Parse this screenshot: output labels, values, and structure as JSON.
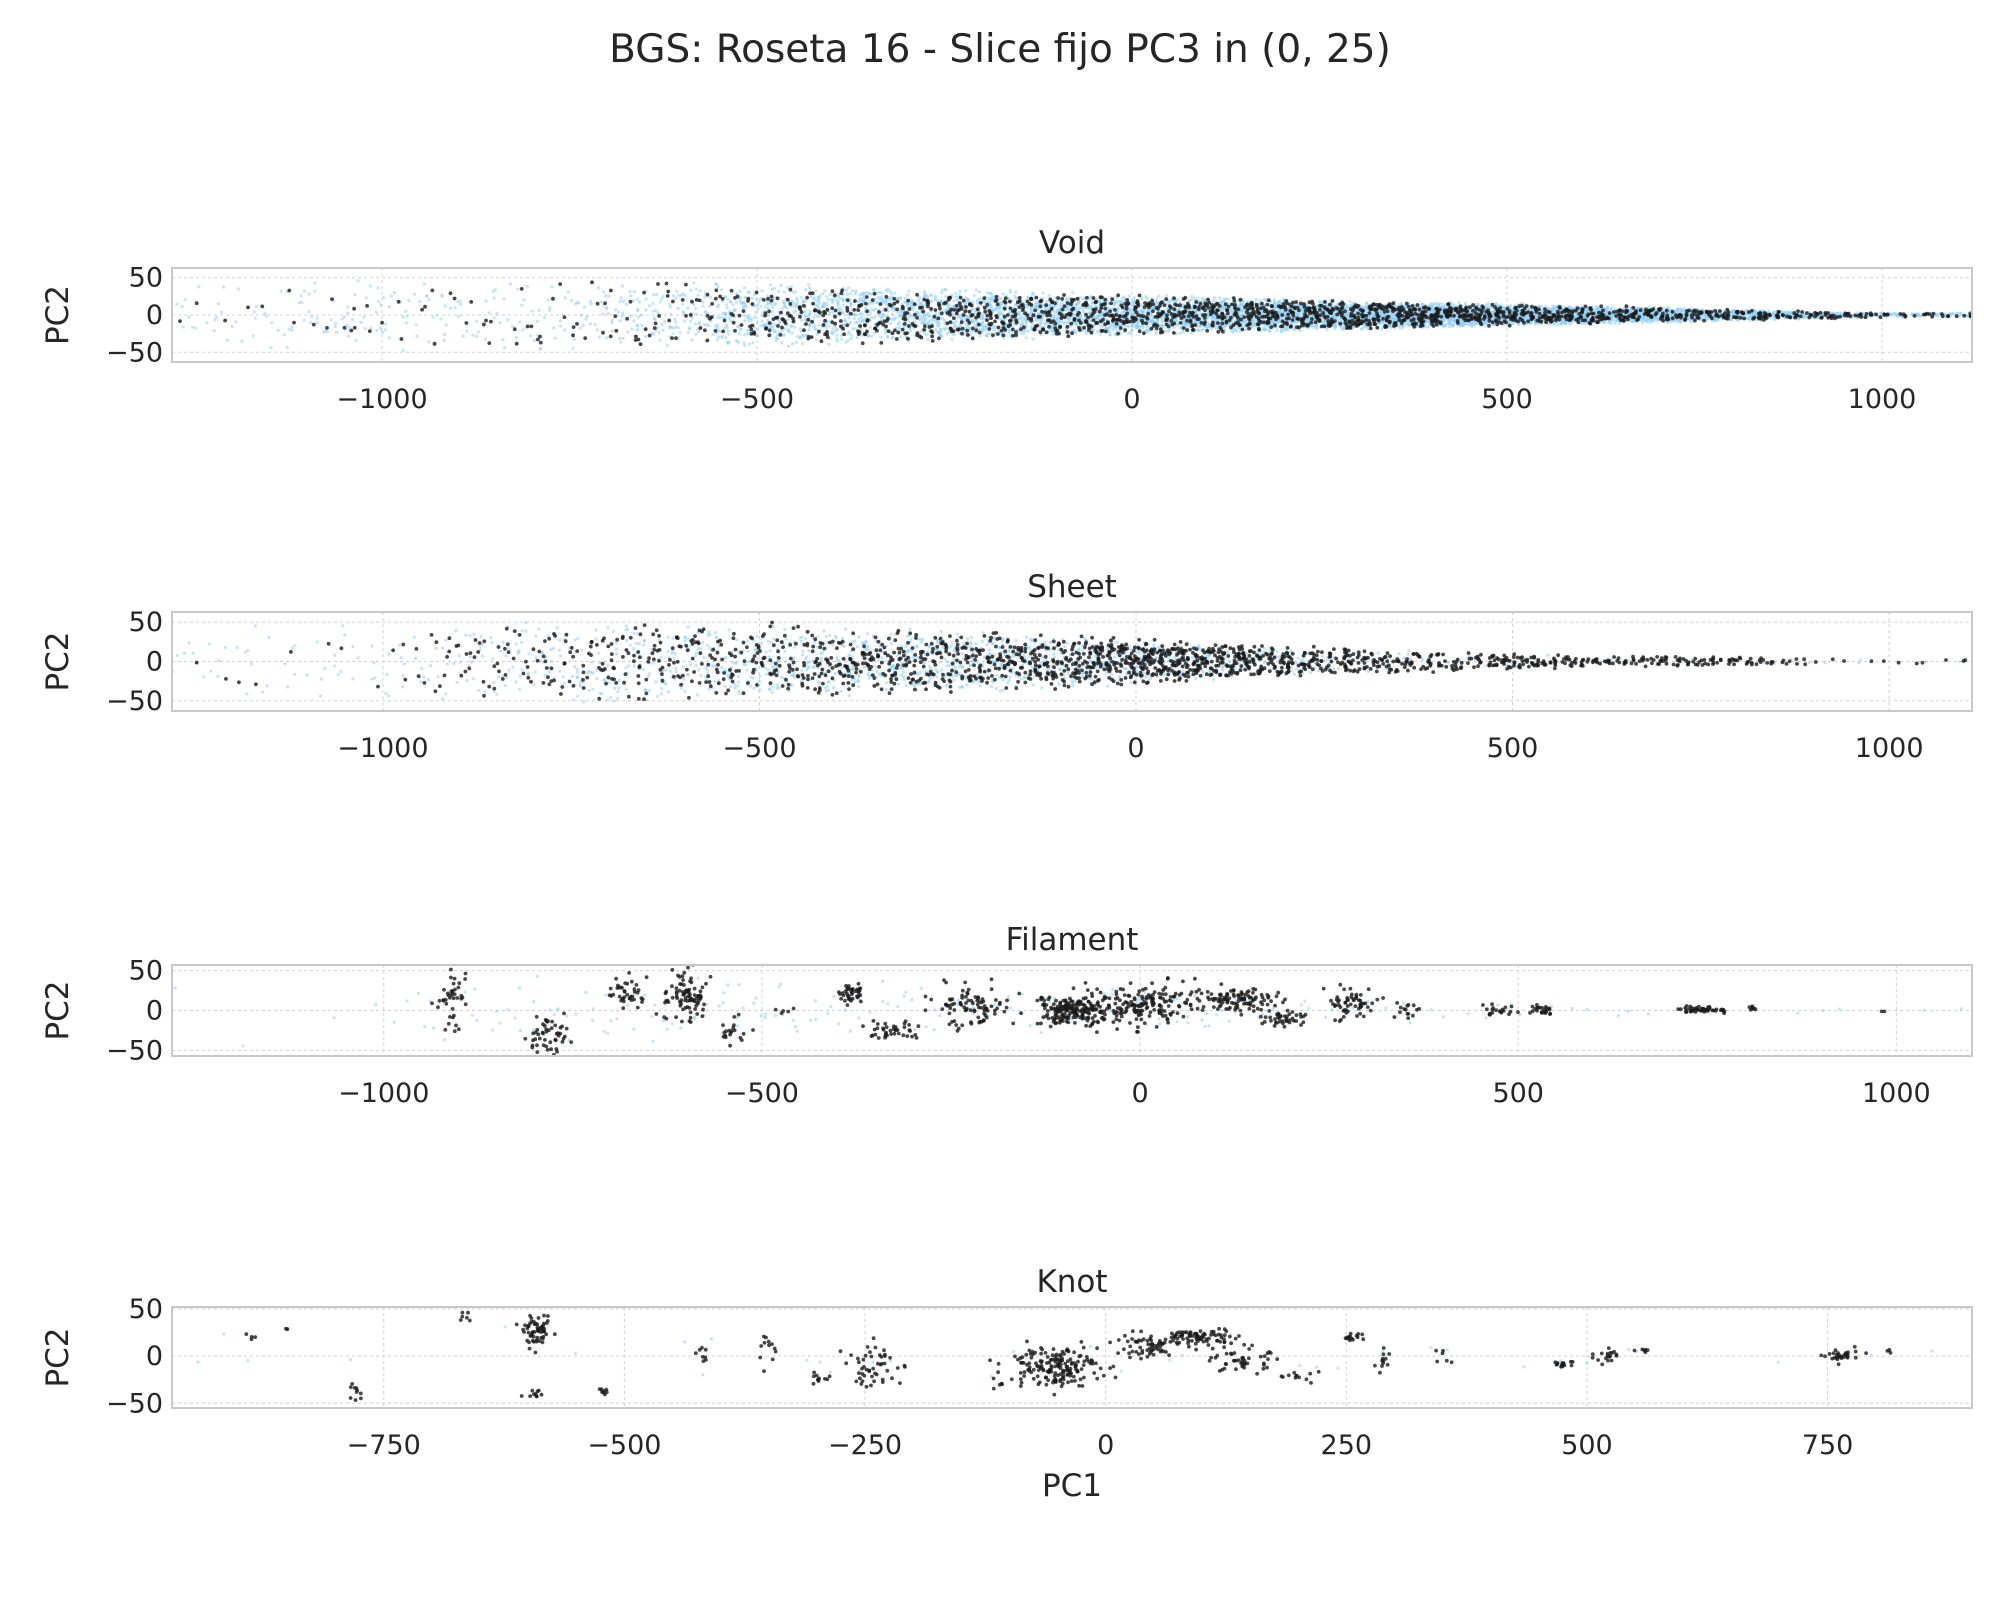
{
  "figure": {
    "suptitle": "BGS: Roseta 16 - Slice fijo PC3 in (0, 25)"
  },
  "colors": {
    "background_points": "#8fcff5",
    "highlight_points": "#1a1a1a",
    "frame": "#c8c8c8",
    "grid": "#d0d0d0",
    "text": "#262626"
  },
  "chart_data": [
    {
      "type": "scatter",
      "title": "Void",
      "xlabel": "",
      "ylabel": "PC2",
      "xlim": [
        -1280,
        1120
      ],
      "ylim": [
        -63,
        63
      ],
      "xticks": [
        -1000,
        -500,
        0,
        500,
        1000
      ],
      "xtick_labels": [
        "−1000",
        "−500",
        "0",
        "500",
        "1000"
      ],
      "yticks": [
        -50,
        0,
        50
      ],
      "ytick_labels": [
        "−50",
        "0",
        "50"
      ],
      "grid": true,
      "series": [
        {
          "role": "background",
          "color": "#8fcff5",
          "density": [
            [
              -1170,
              20
            ],
            [
              -1100,
              40
            ],
            [
              -1000,
              40
            ],
            [
              -900,
              30
            ],
            [
              -800,
              40
            ],
            [
              -700,
              60
            ],
            [
              -600,
              120
            ],
            [
              -500,
              220
            ],
            [
              -400,
              260
            ],
            [
              -300,
              300
            ],
            [
              -200,
              380
            ],
            [
              -100,
              420
            ],
            [
              0,
              460
            ],
            [
              100,
              520
            ],
            [
              200,
              580
            ],
            [
              300,
              640
            ],
            [
              400,
              660
            ],
            [
              500,
              620
            ],
            [
              600,
              560
            ],
            [
              700,
              420
            ],
            [
              800,
              300
            ],
            [
              900,
              180
            ],
            [
              1000,
              60
            ]
          ],
          "halfwidth": [
            [
              -1170,
              55
            ],
            [
              -800,
              50
            ],
            [
              -500,
              45
            ],
            [
              -200,
              35
            ],
            [
              0,
              28
            ],
            [
              300,
              20
            ],
            [
              600,
              13
            ],
            [
              800,
              8
            ],
            [
              1000,
              3
            ]
          ]
        },
        {
          "role": "highlight",
          "color": "#1a1a1a",
          "density": [
            [
              -1170,
              3
            ],
            [
              -1100,
              6
            ],
            [
              -1000,
              8
            ],
            [
              -900,
              10
            ],
            [
              -800,
              12
            ],
            [
              -700,
              18
            ],
            [
              -600,
              30
            ],
            [
              -500,
              60
            ],
            [
              -400,
              70
            ],
            [
              -300,
              90
            ],
            [
              -200,
              110
            ],
            [
              -100,
              120
            ],
            [
              0,
              130
            ],
            [
              100,
              140
            ],
            [
              200,
              150
            ],
            [
              300,
              160
            ],
            [
              400,
              150
            ],
            [
              500,
              130
            ],
            [
              600,
              100
            ],
            [
              700,
              80
            ],
            [
              800,
              60
            ],
            [
              900,
              50
            ],
            [
              1000,
              20
            ]
          ],
          "halfwidth": [
            [
              -1170,
              55
            ],
            [
              -800,
              50
            ],
            [
              -500,
              45
            ],
            [
              -200,
              35
            ],
            [
              0,
              28
            ],
            [
              300,
              20
            ],
            [
              600,
              13
            ],
            [
              800,
              8
            ],
            [
              1000,
              3
            ]
          ]
        }
      ]
    },
    {
      "type": "scatter",
      "title": "Sheet",
      "xlabel": "",
      "ylabel": "PC2",
      "xlim": [
        -1280,
        1110
      ],
      "ylim": [
        -63,
        63
      ],
      "xticks": [
        -1000,
        -500,
        0,
        500,
        1000
      ],
      "xtick_labels": [
        "−1000",
        "−500",
        "0",
        "500",
        "1000"
      ],
      "yticks": [
        -50,
        0,
        50
      ],
      "ytick_labels": [
        "−50",
        "0",
        "50"
      ],
      "grid": true,
      "series": [
        {
          "role": "background",
          "color": "#8fcff5",
          "density": [
            [
              -1170,
              15
            ],
            [
              -1000,
              20
            ],
            [
              -900,
              40
            ],
            [
              -800,
              60
            ],
            [
              -700,
              80
            ],
            [
              -600,
              100
            ],
            [
              -500,
              120
            ],
            [
              -400,
              140
            ],
            [
              -300,
              160
            ],
            [
              -200,
              170
            ],
            [
              -100,
              150
            ],
            [
              0,
              140
            ],
            [
              100,
              100
            ],
            [
              200,
              60
            ],
            [
              300,
              30
            ],
            [
              400,
              15
            ],
            [
              500,
              10
            ],
            [
              600,
              5
            ],
            [
              700,
              5
            ],
            [
              800,
              3
            ]
          ],
          "halfwidth": [
            [
              -1170,
              55
            ],
            [
              -800,
              55
            ],
            [
              -500,
              50
            ],
            [
              -200,
              40
            ],
            [
              0,
              30
            ],
            [
              200,
              20
            ],
            [
              400,
              14
            ],
            [
              600,
              8
            ],
            [
              800,
              6
            ],
            [
              1000,
              3
            ]
          ]
        },
        {
          "role": "highlight",
          "color": "#1a1a1a",
          "density": [
            [
              -1170,
              2
            ],
            [
              -1000,
              3
            ],
            [
              -900,
              30
            ],
            [
              -800,
              40
            ],
            [
              -700,
              60
            ],
            [
              -600,
              70
            ],
            [
              -500,
              80
            ],
            [
              -400,
              110
            ],
            [
              -300,
              120
            ],
            [
              -200,
              130
            ],
            [
              -100,
              150
            ],
            [
              0,
              220
            ],
            [
              100,
              170
            ],
            [
              200,
              110
            ],
            [
              300,
              90
            ],
            [
              400,
              50
            ],
            [
              500,
              80
            ],
            [
              600,
              40
            ],
            [
              700,
              50
            ],
            [
              800,
              40
            ],
            [
              900,
              5
            ],
            [
              1000,
              5
            ]
          ],
          "halfwidth": [
            [
              -1170,
              55
            ],
            [
              -800,
              55
            ],
            [
              -500,
              50
            ],
            [
              -200,
              40
            ],
            [
              0,
              30
            ],
            [
              200,
              20
            ],
            [
              400,
              14
            ],
            [
              600,
              8
            ],
            [
              800,
              6
            ],
            [
              1000,
              3
            ]
          ]
        }
      ]
    },
    {
      "type": "scatter",
      "title": "Filament",
      "xlabel": "",
      "ylabel": "PC2",
      "xlim": [
        -1280,
        1100
      ],
      "ylim": [
        -57,
        57
      ],
      "xticks": [
        -1000,
        -500,
        0,
        500,
        1000
      ],
      "xtick_labels": [
        "−1000",
        "−500",
        "0",
        "500",
        "1000"
      ],
      "yticks": [
        -50,
        0,
        50
      ],
      "ytick_labels": [
        "−50",
        "0",
        "50"
      ],
      "grid": true,
      "series": [
        {
          "role": "background",
          "color": "#8fcff5",
          "density": [
            [
              -1170,
              2
            ],
            [
              -1000,
              3
            ],
            [
              -900,
              10
            ],
            [
              -800,
              15
            ],
            [
              -700,
              15
            ],
            [
              -600,
              20
            ],
            [
              -500,
              15
            ],
            [
              -400,
              15
            ],
            [
              -300,
              15
            ],
            [
              -200,
              15
            ],
            [
              -100,
              20
            ],
            [
              0,
              20
            ],
            [
              100,
              15
            ],
            [
              200,
              10
            ],
            [
              300,
              8
            ],
            [
              400,
              5
            ],
            [
              500,
              5
            ],
            [
              600,
              3
            ],
            [
              700,
              3
            ],
            [
              800,
              2
            ],
            [
              980,
              1
            ]
          ],
          "halfwidth": [
            [
              -1170,
              50
            ],
            [
              -600,
              45
            ],
            [
              -300,
              35
            ],
            [
              0,
              30
            ],
            [
              300,
              18
            ],
            [
              600,
              10
            ],
            [
              800,
              6
            ],
            [
              1000,
              3
            ]
          ]
        },
        {
          "role": "highlight",
          "color": "#1a1a1a",
          "clusters": [
            [
              -910,
              10,
              15,
              28,
              40
            ],
            [
              -780,
              -30,
              22,
              20,
              50
            ],
            [
              -680,
              25,
              20,
              18,
              40
            ],
            [
              -600,
              15,
              22,
              28,
              90
            ],
            [
              -540,
              -25,
              15,
              15,
              20
            ],
            [
              -470,
              0,
              10,
              8,
              5
            ],
            [
              -380,
              20,
              18,
              12,
              40
            ],
            [
              -330,
              -25,
              30,
              8,
              40
            ],
            [
              -220,
              5,
              40,
              20,
              90
            ],
            [
              -90,
              0,
              40,
              18,
              180
            ],
            [
              0,
              5,
              60,
              20,
              180
            ],
            [
              130,
              15,
              50,
              12,
              110
            ],
            [
              190,
              -10,
              25,
              8,
              40
            ],
            [
              280,
              10,
              30,
              15,
              60
            ],
            [
              350,
              0,
              15,
              8,
              15
            ],
            [
              470,
              0,
              15,
              6,
              20
            ],
            [
              530,
              0,
              15,
              5,
              25
            ],
            [
              745,
              0,
              25,
              4,
              50
            ],
            [
              810,
              3,
              6,
              3,
              8
            ],
            [
              980,
              0,
              5,
              3,
              2
            ]
          ]
        }
      ]
    },
    {
      "type": "scatter",
      "title": "Knot",
      "xlabel": "PC1",
      "ylabel": "PC2",
      "xlim": [
        -970,
        900
      ],
      "ylim": [
        -55,
        52
      ],
      "xticks": [
        -750,
        -500,
        -250,
        0,
        250,
        500,
        750
      ],
      "xtick_labels": [
        "−750",
        "−500",
        "−250",
        "0",
        "250",
        "500",
        "750"
      ],
      "yticks": [
        -50,
        0,
        50
      ],
      "ytick_labels": [
        "−50",
        "0",
        "50"
      ],
      "grid": true,
      "series": [
        {
          "role": "background",
          "color": "#8fcff5",
          "density": [
            [
              -900,
              1
            ],
            [
              -500,
              1
            ],
            [
              0,
              2
            ],
            [
              400,
              2
            ],
            [
              800,
              1
            ]
          ],
          "halfwidth": [
            [
              -900,
              40
            ],
            [
              0,
              30
            ],
            [
              800,
              10
            ]
          ]
        },
        {
          "role": "highlight",
          "color": "#1a1a1a",
          "clusters": [
            [
              -890,
              20,
              8,
              4,
              4
            ],
            [
              -850,
              28,
              4,
              2,
              2
            ],
            [
              -780,
              -38,
              8,
              10,
              10
            ],
            [
              -665,
              40,
              10,
              6,
              6
            ],
            [
              -590,
              25,
              12,
              12,
              60
            ],
            [
              -595,
              -40,
              10,
              4,
              10
            ],
            [
              -520,
              -38,
              5,
              3,
              8
            ],
            [
              -420,
              0,
              15,
              10,
              8
            ],
            [
              -350,
              10,
              10,
              18,
              12
            ],
            [
              -300,
              -25,
              10,
              5,
              10
            ],
            [
              -240,
              -10,
              25,
              20,
              50
            ],
            [
              -110,
              -30,
              6,
              4,
              4
            ],
            [
              -55,
              -10,
              40,
              18,
              180
            ],
            [
              40,
              10,
              30,
              12,
              60
            ],
            [
              100,
              20,
              30,
              8,
              80
            ],
            [
              140,
              -5,
              25,
              12,
              50
            ],
            [
              200,
              -20,
              15,
              5,
              12
            ],
            [
              255,
              20,
              10,
              3,
              16
            ],
            [
              290,
              -5,
              10,
              10,
              12
            ],
            [
              350,
              2,
              8,
              8,
              6
            ],
            [
              475,
              -8,
              10,
              4,
              14
            ],
            [
              520,
              0,
              10,
              6,
              18
            ],
            [
              560,
              5,
              8,
              4,
              6
            ],
            [
              765,
              0,
              15,
              6,
              30
            ],
            [
              815,
              5,
              5,
              3,
              3
            ]
          ]
        }
      ]
    }
  ]
}
